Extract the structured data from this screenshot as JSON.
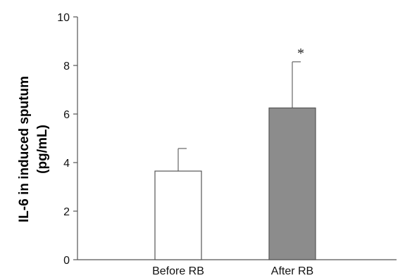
{
  "chart_data": {
    "type": "bar",
    "title": "",
    "xlabel": "",
    "ylabel": [
      "IL-6 in induced sputum",
      "(pg/mL)"
    ],
    "categories": [
      "Before RB",
      "After RB"
    ],
    "values": [
      3.65,
      6.25
    ],
    "error_upper": [
      4.58,
      8.15
    ],
    "bar_colors": [
      "#ffffff",
      "#8c8c8c"
    ],
    "annotations": [
      "",
      "*"
    ],
    "ylim": [
      0,
      10
    ],
    "yticks": [
      0,
      2,
      4,
      6,
      8,
      10
    ],
    "grid": false,
    "legend": "none"
  }
}
